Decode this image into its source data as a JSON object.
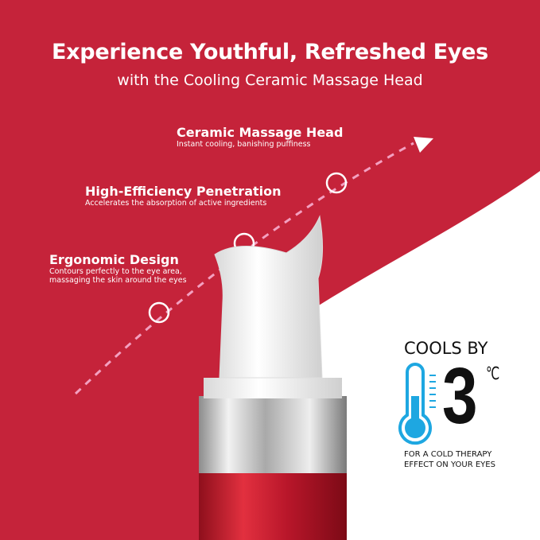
{
  "header": {
    "title": "Experience Youthful, Refreshed Eyes",
    "subtitle": "with the Cooling Ceramic Massage Head"
  },
  "features": [
    {
      "title": "Ceramic Massage Head",
      "desc": [
        "Instant cooling, banishing puffiness"
      ]
    },
    {
      "title": "High-Efficiency Penetration",
      "desc": [
        "Accelerates the absorption of active ingredients"
      ]
    },
    {
      "title": "Ergonomic Design",
      "desc": [
        "Contours perfectly to the eye area,",
        "massaging the skin around the eyes"
      ]
    }
  ],
  "cooling": {
    "heading": "COOLS BY",
    "value": "3",
    "unit": "℃",
    "note": [
      "FOR A COLD THERAPY",
      "EFFECT ON YOUR EYES"
    ],
    "icon": "thermometer-icon"
  },
  "colors": {
    "background": "#c5233a",
    "accent_blue": "#1ea7e1",
    "white": "#ffffff"
  }
}
